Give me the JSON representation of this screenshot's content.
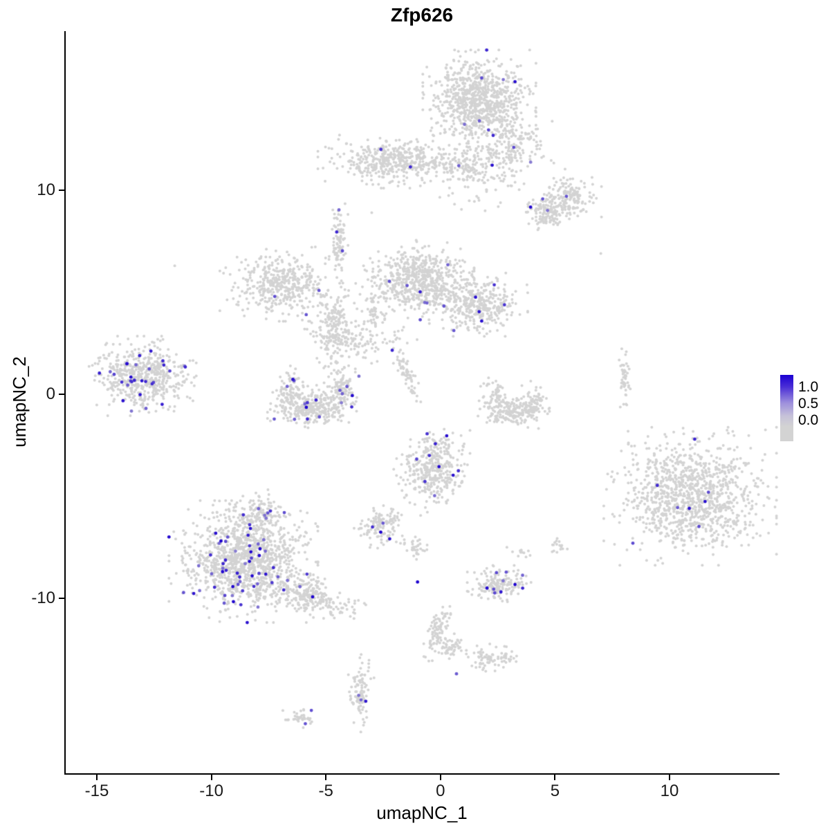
{
  "title": "Zfp626",
  "axes": {
    "x_tick_labels": [
      "-15",
      "-10",
      "-5",
      "0",
      "5",
      "10"
    ],
    "y_tick_labels": [
      "-10",
      "0",
      "10"
    ]
  },
  "legend": {
    "tick_high": "1.0",
    "tick_mid": "0.5",
    "tick_low": "0.0"
  },
  "chart_data": {
    "type": "scatter",
    "title": "Zfp626",
    "xlabel": "umapNC_1",
    "ylabel": "umapNC_2",
    "xlim": [
      -16.4,
      14.7
    ],
    "ylim": [
      -18.6,
      17.8
    ],
    "x_ticks": [
      -15,
      -10,
      -5,
      0,
      5,
      10
    ],
    "y_ticks": [
      -10,
      0,
      10
    ],
    "grid": false,
    "legend_position": "right",
    "color_scale": {
      "low_value": 0.0,
      "mid_value": 0.5,
      "high_value": 1.0,
      "low_color": "#d3d3d3",
      "high_color": "#1c00cf"
    },
    "clusters": [
      {
        "name": "top-main",
        "cx": 1.7,
        "cy": 14.4,
        "sx": 0.95,
        "sy": 0.95,
        "n": 850,
        "frac": 0.004
      },
      {
        "name": "top-tail",
        "cx": 3.1,
        "cy": 12.4,
        "sx": 0.75,
        "sy": 0.65,
        "n": 150,
        "frac": 0.01
      },
      {
        "name": "top-sparse",
        "cx": 2.4,
        "cy": 10.7,
        "sx": 1.2,
        "sy": 0.8,
        "n": 70,
        "frac": 0.0
      },
      {
        "name": "topright-blob",
        "cx": 5.6,
        "cy": 9.6,
        "sx": 0.55,
        "sy": 0.45,
        "n": 160,
        "frac": 0.02
      },
      {
        "name": "topright-dense",
        "cx": 4.6,
        "cy": 8.9,
        "sx": 0.38,
        "sy": 0.33,
        "n": 130,
        "frac": 0.02
      },
      {
        "name": "upper-band",
        "cx": -2.1,
        "cy": 11.4,
        "sx": 1.25,
        "sy": 0.5,
        "n": 420,
        "frac": 0.006
      },
      {
        "name": "upper-band-right",
        "cx": 0.9,
        "cy": 11.2,
        "sx": 0.85,
        "sy": 0.4,
        "n": 150,
        "frac": 0.006
      },
      {
        "name": "butterfly-left",
        "cx": -6.9,
        "cy": 5.4,
        "sx": 1.05,
        "sy": 0.7,
        "n": 420,
        "frac": 0.012
      },
      {
        "name": "strand-vertical",
        "cx": -4.45,
        "cy": 7.4,
        "sx": 0.16,
        "sy": 0.75,
        "n": 90,
        "frac": 0.012
      },
      {
        "name": "mid-dense",
        "cx": -1.0,
        "cy": 5.6,
        "sx": 0.95,
        "sy": 0.75,
        "n": 620,
        "frac": 0.008
      },
      {
        "name": "mid-right",
        "cx": 1.6,
        "cy": 4.4,
        "sx": 0.85,
        "sy": 0.6,
        "n": 360,
        "frac": 0.015
      },
      {
        "name": "central-scatter",
        "cx": -4.6,
        "cy": 3.3,
        "sx": 0.55,
        "sy": 0.95,
        "n": 240,
        "frac": 0.004
      },
      {
        "name": "central-connector",
        "cx": -3.1,
        "cy": 2.6,
        "sx": 0.8,
        "sy": 0.5,
        "n": 70,
        "frac": 0.0
      },
      {
        "name": "connector-strand",
        "cx": -2.95,
        "cy": 4.0,
        "sx": 0.12,
        "sy": 0.5,
        "n": 40,
        "frac": 0.0
      },
      {
        "name": "diag-strand",
        "cx": -1.45,
        "cy": 0.9,
        "sx": 0.14,
        "sy": 0.65,
        "n": 60,
        "frac": 0.03,
        "rot": 0.3
      },
      {
        "name": "left-big",
        "cx": -13.0,
        "cy": 0.9,
        "sx": 0.9,
        "sy": 0.75,
        "n": 560,
        "frac": 0.05
      },
      {
        "name": "crescent-left-tip",
        "cx": -6.5,
        "cy": 0.1,
        "sx": 0.3,
        "sy": 0.5,
        "n": 90,
        "frac": 0.04
      },
      {
        "name": "crescent-bottom",
        "cx": -5.6,
        "cy": -0.6,
        "sx": 0.75,
        "sy": 0.4,
        "n": 300,
        "frac": 0.035
      },
      {
        "name": "crescent-right-tip",
        "cx": -4.3,
        "cy": 0.4,
        "sx": 0.3,
        "sy": 0.55,
        "n": 110,
        "frac": 0.035
      },
      {
        "name": "rcrescent-left",
        "cx": 2.4,
        "cy": -0.2,
        "sx": 0.3,
        "sy": 0.45,
        "n": 80,
        "frac": 0.003
      },
      {
        "name": "rcrescent-bottom",
        "cx": 3.2,
        "cy": -0.9,
        "sx": 0.6,
        "sy": 0.3,
        "n": 170,
        "frac": 0.003
      },
      {
        "name": "rcrescent-right",
        "cx": 4.0,
        "cy": -0.4,
        "sx": 0.25,
        "sy": 0.4,
        "n": 60,
        "frac": 0.003
      },
      {
        "name": "thin-strand-right",
        "cx": 8.05,
        "cy": 0.8,
        "sx": 0.1,
        "sy": 0.55,
        "n": 50,
        "frac": 0.0
      },
      {
        "name": "below-mid",
        "cx": -0.4,
        "cy": -3.6,
        "sx": 0.65,
        "sy": 0.9,
        "n": 380,
        "frac": 0.03
      },
      {
        "name": "small-mid-left",
        "cx": -2.6,
        "cy": -6.5,
        "sx": 0.45,
        "sy": 0.4,
        "n": 130,
        "frac": 0.03
      },
      {
        "name": "tiny-mid",
        "cx": -1.1,
        "cy": -7.5,
        "sx": 0.2,
        "sy": 0.25,
        "n": 30,
        "frac": 0.05
      },
      {
        "name": "lowerleft-big",
        "cx": -8.6,
        "cy": -8.2,
        "sx": 1.25,
        "sy": 1.15,
        "n": 1150,
        "frac": 0.055
      },
      {
        "name": "lowerleft-spur",
        "cx": -8.0,
        "cy": -5.9,
        "sx": 0.55,
        "sy": 0.5,
        "n": 130,
        "frac": 0.05
      },
      {
        "name": "lowerleft-tail",
        "cx": -5.7,
        "cy": -9.9,
        "sx": 0.95,
        "sy": 0.4,
        "n": 260,
        "frac": 0.012,
        "rot": -0.35
      },
      {
        "name": "small-lower-right",
        "cx": 2.6,
        "cy": -9.3,
        "sx": 0.55,
        "sy": 0.35,
        "n": 170,
        "frac": 0.09
      },
      {
        "name": "strand-down",
        "cx": -0.1,
        "cy": -11.5,
        "sx": 0.22,
        "sy": 0.65,
        "n": 90,
        "frac": 0.0,
        "rot": -0.25
      },
      {
        "name": "strand-down-blob",
        "cx": 0.35,
        "cy": -12.4,
        "sx": 0.3,
        "sy": 0.3,
        "n": 50,
        "frac": 0.0
      },
      {
        "name": "bottom-mid-blob",
        "cx": 2.2,
        "cy": -12.9,
        "sx": 0.45,
        "sy": 0.28,
        "n": 80,
        "frac": 0.0
      },
      {
        "name": "bottom-strand",
        "cx": -3.5,
        "cy": -14.6,
        "sx": 0.2,
        "sy": 0.75,
        "n": 95,
        "frac": 0.03
      },
      {
        "name": "bottom-tiny",
        "cx": -6.1,
        "cy": -15.9,
        "sx": 0.3,
        "sy": 0.18,
        "n": 40,
        "frac": 0.03
      },
      {
        "name": "right-big",
        "cx": 10.9,
        "cy": -5.0,
        "sx": 1.45,
        "sy": 1.3,
        "n": 1100,
        "frac": 0.006
      },
      {
        "name": "right-pair",
        "cx": 5.1,
        "cy": -7.5,
        "sx": 0.25,
        "sy": 0.2,
        "n": 16,
        "frac": 0.1
      },
      {
        "name": "right-pair-2",
        "cx": 3.6,
        "cy": -7.8,
        "sx": 0.2,
        "sy": 0.15,
        "n": 10,
        "frac": 0.0
      }
    ],
    "singles": [
      {
        "x": -1.0,
        "y": -9.2,
        "v": 1.0
      },
      {
        "x": -2.6,
        "y": 12.0,
        "v": 0.7
      },
      {
        "x": 5.5,
        "y": 9.7,
        "v": 0.55
      },
      {
        "x": 0.8,
        "y": 11.2,
        "v": 0.5
      },
      {
        "x": -11.6,
        "y": 6.3,
        "v": 0.0
      },
      {
        "x": 7.0,
        "y": 6.9,
        "v": 0.0
      },
      {
        "x": -3.0,
        "y": 8.9,
        "v": 0.0
      },
      {
        "x": 0.7,
        "y": -13.7,
        "v": 0.5
      },
      {
        "x": 11.1,
        "y": -2.2,
        "v": 0.8
      },
      {
        "x": 11.7,
        "y": -4.8,
        "v": 0.6
      },
      {
        "x": 8.4,
        "y": -7.3,
        "v": 0.6
      },
      {
        "x": 1.8,
        "y": 15.5,
        "v": 0.6
      },
      {
        "x": 1.7,
        "y": 13.4,
        "v": 0.5
      },
      {
        "x": 3.2,
        "y": 12.1,
        "v": 0.6
      },
      {
        "x": -2.9,
        "y": -13.9,
        "v": 0.0
      },
      {
        "x": 2.9,
        "y": -7.5,
        "v": 0.0
      }
    ]
  }
}
